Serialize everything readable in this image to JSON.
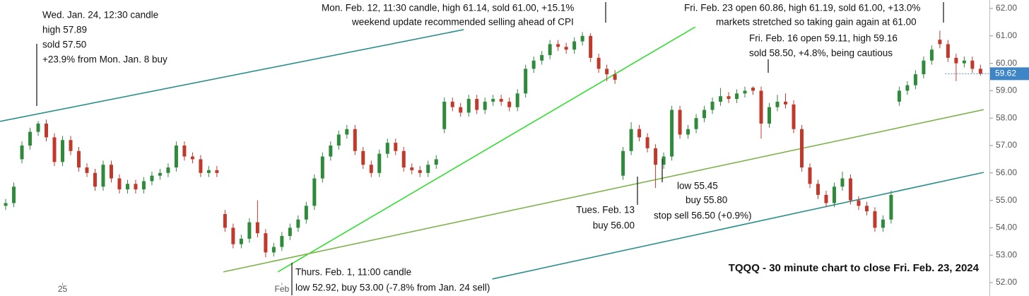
{
  "chart_data": {
    "type": "candlestick",
    "title": "TQQQ - 30 minute chart to close Fri. Feb. 23, 2024",
    "up_color": "#2f8a3c",
    "down_color": "#c0392b",
    "xlim": [
      -0.7,
      121.1
    ],
    "ylim": [
      51.51,
      62.31
    ],
    "xticks": [
      {
        "value": 7,
        "label": "25"
      },
      {
        "value": 34,
        "label": "Feb"
      }
    ],
    "yticks": [
      {
        "value": 52,
        "label": "52.00"
      },
      {
        "value": 53,
        "label": "53.00"
      },
      {
        "value": 54,
        "label": "54.00"
      },
      {
        "value": 55,
        "label": "55.00"
      },
      {
        "value": 56,
        "label": "56.00"
      },
      {
        "value": 57,
        "label": "57.00"
      },
      {
        "value": 58,
        "label": "58.00"
      },
      {
        "value": 59,
        "label": "59.00"
      },
      {
        "value": 60,
        "label": "60.00"
      },
      {
        "value": 61,
        "label": "61.00"
      },
      {
        "value": 62,
        "label": "62.00"
      }
    ],
    "ohlc": [
      [
        54.8,
        55.05,
        54.65,
        54.9
      ],
      [
        54.9,
        55.65,
        54.75,
        55.5
      ],
      [
        56.5,
        57.15,
        56.35,
        57.0
      ],
      [
        57.0,
        57.65,
        56.85,
        57.5
      ],
      [
        57.5,
        57.89,
        57.35,
        57.8
      ],
      [
        57.8,
        57.95,
        57.15,
        57.3
      ],
      [
        57.3,
        57.45,
        56.25,
        56.4
      ],
      [
        56.4,
        57.35,
        56.25,
        57.2
      ],
      [
        57.2,
        57.35,
        56.65,
        56.8
      ],
      [
        56.8,
        56.95,
        56.05,
        56.2
      ],
      [
        56.2,
        56.35,
        55.85,
        56.0
      ],
      [
        56.0,
        56.15,
        55.35,
        55.5
      ],
      [
        55.5,
        56.45,
        55.35,
        56.3
      ],
      [
        56.3,
        56.45,
        55.65,
        55.8
      ],
      [
        55.8,
        55.95,
        55.25,
        55.4
      ],
      [
        55.4,
        55.75,
        55.25,
        55.6
      ],
      [
        55.6,
        55.75,
        55.25,
        55.4
      ],
      [
        55.4,
        55.85,
        55.25,
        55.7
      ],
      [
        55.7,
        56.05,
        55.55,
        55.9
      ],
      [
        55.9,
        56.15,
        55.75,
        56.0
      ],
      [
        56.0,
        56.35,
        55.85,
        56.2
      ],
      [
        56.2,
        57.15,
        56.05,
        57.0
      ],
      [
        57.0,
        57.15,
        56.45,
        56.6
      ],
      [
        56.6,
        56.75,
        56.35,
        56.5
      ],
      [
        56.5,
        56.65,
        55.85,
        56.0
      ],
      [
        56.0,
        56.25,
        55.85,
        56.1
      ],
      [
        56.1,
        56.25,
        55.85,
        56.0
      ],
      [
        54.5,
        54.65,
        53.85,
        54.0
      ],
      [
        54.0,
        54.15,
        53.25,
        53.4
      ],
      [
        53.4,
        53.75,
        53.25,
        53.6
      ],
      [
        53.6,
        54.35,
        53.45,
        54.2
      ],
      [
        54.2,
        55.0,
        53.65,
        53.8
      ],
      [
        53.8,
        53.95,
        52.92,
        53.1
      ],
      [
        53.1,
        53.45,
        52.95,
        53.3
      ],
      [
        53.3,
        53.85,
        53.15,
        53.7
      ],
      [
        53.7,
        54.15,
        53.55,
        54.0
      ],
      [
        54.0,
        54.45,
        53.85,
        54.3
      ],
      [
        54.3,
        54.95,
        54.15,
        54.8
      ],
      [
        54.8,
        55.95,
        54.65,
        55.8
      ],
      [
        55.8,
        56.75,
        55.65,
        56.6
      ],
      [
        56.6,
        57.15,
        56.45,
        57.0
      ],
      [
        57.0,
        57.55,
        56.85,
        57.4
      ],
      [
        57.4,
        57.75,
        57.25,
        57.6
      ],
      [
        57.6,
        57.75,
        56.65,
        56.8
      ],
      [
        56.8,
        56.95,
        56.15,
        56.3
      ],
      [
        56.3,
        56.45,
        55.85,
        56.0
      ],
      [
        56.0,
        56.85,
        55.85,
        56.7
      ],
      [
        56.7,
        57.25,
        56.55,
        57.1
      ],
      [
        57.1,
        57.25,
        56.65,
        56.8
      ],
      [
        56.8,
        56.95,
        56.05,
        56.2
      ],
      [
        56.2,
        56.35,
        55.95,
        56.1
      ],
      [
        56.1,
        56.25,
        55.85,
        56.0
      ],
      [
        56.0,
        56.45,
        55.85,
        56.3
      ],
      [
        56.3,
        56.65,
        56.15,
        56.5
      ],
      [
        57.6,
        58.75,
        57.45,
        58.6
      ],
      [
        58.6,
        58.75,
        58.25,
        58.4
      ],
      [
        58.4,
        58.55,
        58.05,
        58.2
      ],
      [
        58.2,
        58.85,
        58.05,
        58.7
      ],
      [
        58.7,
        58.85,
        58.15,
        58.3
      ],
      [
        58.3,
        58.75,
        58.15,
        58.6
      ],
      [
        58.6,
        58.85,
        58.45,
        58.7
      ],
      [
        58.7,
        58.85,
        58.45,
        58.6
      ],
      [
        58.6,
        58.75,
        58.25,
        58.4
      ],
      [
        58.4,
        59.05,
        58.25,
        58.9
      ],
      [
        58.9,
        59.95,
        58.75,
        59.8
      ],
      [
        59.8,
        60.25,
        59.65,
        60.1
      ],
      [
        60.1,
        60.45,
        59.95,
        60.3
      ],
      [
        60.3,
        60.85,
        60.15,
        60.7
      ],
      [
        60.7,
        60.85,
        60.45,
        60.6
      ],
      [
        60.6,
        60.75,
        60.35,
        60.5
      ],
      [
        60.5,
        60.95,
        60.35,
        60.8
      ],
      [
        60.8,
        61.14,
        60.65,
        61.0
      ],
      [
        61.0,
        61.1,
        60.05,
        60.2
      ],
      [
        60.2,
        60.35,
        59.65,
        59.8
      ],
      [
        59.8,
        59.95,
        59.35,
        59.6
      ],
      [
        59.6,
        59.75,
        59.25,
        59.4
      ],
      [
        55.9,
        56.95,
        55.75,
        56.8
      ],
      [
        56.8,
        57.85,
        56.65,
        57.6
      ],
      [
        57.6,
        57.75,
        57.15,
        57.3
      ],
      [
        57.3,
        57.45,
        56.75,
        56.9
      ],
      [
        56.9,
        57.05,
        55.45,
        56.3
      ],
      [
        56.3,
        56.75,
        56.15,
        56.6
      ],
      [
        56.6,
        58.45,
        56.45,
        58.3
      ],
      [
        58.3,
        58.45,
        57.25,
        57.4
      ],
      [
        57.4,
        57.75,
        57.25,
        57.6
      ],
      [
        57.6,
        58.15,
        57.45,
        58.0
      ],
      [
        58.0,
        58.45,
        57.85,
        58.3
      ],
      [
        58.3,
        58.75,
        58.15,
        58.6
      ],
      [
        58.6,
        59.1,
        58.45,
        58.8
      ],
      [
        58.8,
        58.95,
        58.55,
        58.7
      ],
      [
        58.7,
        59.05,
        58.55,
        58.9
      ],
      [
        58.9,
        59.15,
        58.75,
        59.0
      ],
      [
        59.11,
        59.16,
        58.85,
        59.0
      ],
      [
        59.0,
        59.15,
        57.25,
        57.8
      ],
      [
        57.8,
        58.55,
        57.65,
        58.4
      ],
      [
        58.4,
        58.85,
        58.25,
        58.6
      ],
      [
        58.6,
        58.9,
        58.35,
        58.5
      ],
      [
        58.5,
        58.65,
        57.45,
        57.6
      ],
      [
        57.6,
        57.75,
        56.05,
        56.2
      ],
      [
        56.2,
        56.35,
        55.45,
        55.6
      ],
      [
        55.6,
        55.75,
        55.05,
        55.2
      ],
      [
        55.2,
        55.35,
        54.75,
        54.9
      ],
      [
        54.9,
        55.65,
        54.75,
        55.5
      ],
      [
        55.5,
        56.05,
        55.35,
        55.8
      ],
      [
        55.8,
        55.95,
        54.85,
        55.0
      ],
      [
        55.0,
        55.15,
        54.65,
        54.8
      ],
      [
        54.8,
        54.95,
        54.45,
        54.6
      ],
      [
        54.6,
        54.75,
        53.85,
        54.0
      ],
      [
        54.0,
        54.45,
        53.85,
        54.3
      ],
      [
        54.3,
        55.35,
        54.15,
        55.2
      ],
      [
        58.6,
        59.15,
        58.45,
        59.0
      ],
      [
        59.0,
        59.35,
        58.85,
        59.2
      ],
      [
        59.2,
        59.75,
        59.05,
        59.6
      ],
      [
        59.6,
        60.25,
        59.45,
        60.1
      ],
      [
        60.1,
        60.65,
        59.95,
        60.5
      ],
      [
        60.86,
        61.19,
        60.55,
        60.7
      ],
      [
        60.7,
        60.85,
        60.05,
        60.2
      ],
      [
        60.2,
        60.35,
        59.35,
        60.0
      ],
      [
        60.0,
        60.25,
        59.85,
        60.1
      ],
      [
        60.1,
        60.25,
        59.65,
        59.8
      ],
      [
        59.8,
        59.95,
        59.55,
        59.62
      ]
    ],
    "trendlines": [
      {
        "color": "#2a8f8a",
        "x": [
          -0.7,
          56.4
        ],
        "y": [
          57.88,
          61.23
        ]
      },
      {
        "color": "#33dd33",
        "x": [
          33.5,
          84.9
        ],
        "y": [
          52.39,
          61.33
        ]
      },
      {
        "color": "#7fb24d",
        "x": [
          26.8,
          120.4
        ],
        "y": [
          52.39,
          58.31
        ]
      },
      {
        "color": "#2a8f8a",
        "x": [
          59.9,
          120.4
        ],
        "y": [
          52.13,
          56.02
        ]
      }
    ],
    "annotations": [
      [
        "Wed. Jan. 24, 12:30 candle",
        "high 57.89",
        "sold 57.50",
        "+23.9% from Mon. Jan. 8 buy"
      ],
      [
        "Mon. Feb. 12, 11:30 candle, high 61.14, sold 61.00, +15.1%",
        "weekend update recommended selling ahead of CPI"
      ],
      [
        "Fri. Feb. 23 open 60.86, high 61.19, sold 61.00, +13.0%",
        "markets stretched so taking gain again at 61.00"
      ],
      [
        "Fri. Feb. 16 open 59.11, high 59.16",
        "sold 58.50, +4.8%, being cautious"
      ],
      [
        "low 55.45",
        "buy 55.80"
      ],
      [
        "Tues. Feb. 13",
        "buy 56.00"
      ],
      [
        "stop sell 56.50 (+0.9%)"
      ],
      [
        "Thurs. Feb. 1, 11:00 candle",
        "low 52.92, buy 53.00 (-7.8% from Jan. 24 sell)"
      ]
    ]
  }
}
